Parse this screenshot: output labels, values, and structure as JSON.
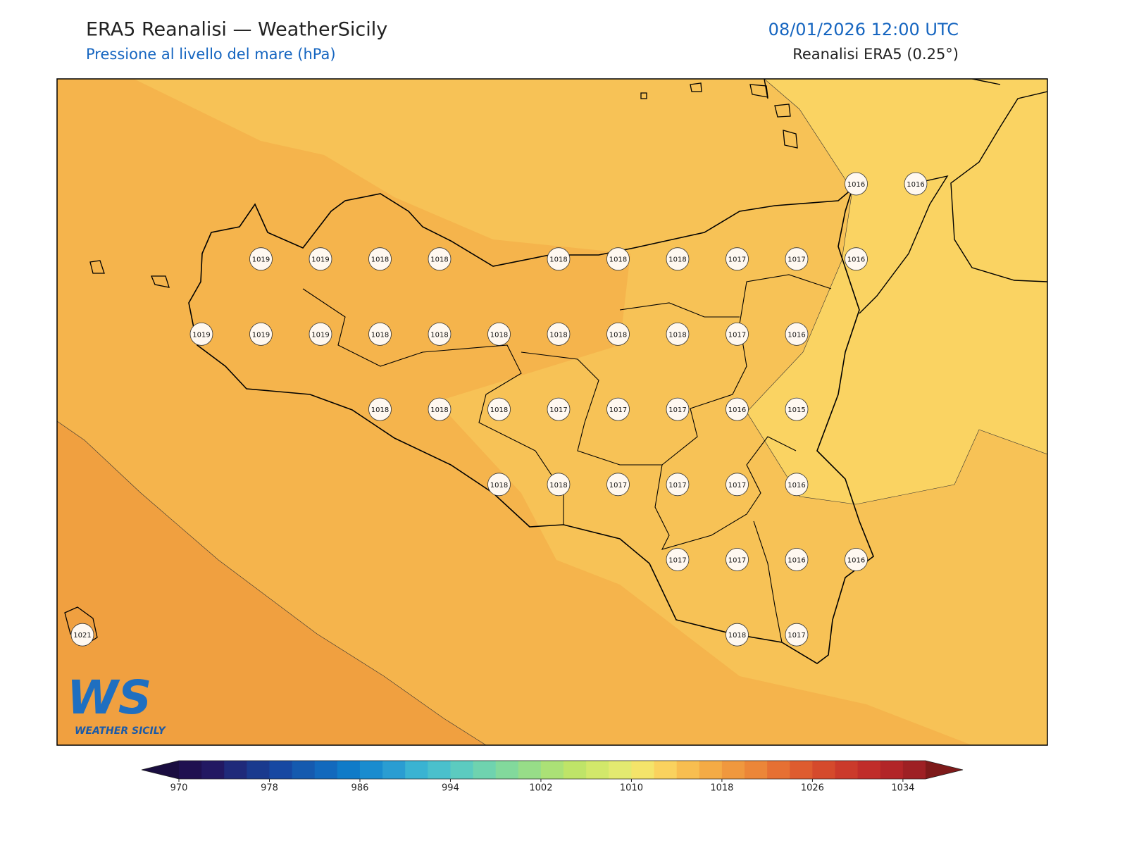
{
  "header": {
    "title": "ERA5 Reanalisi — WeatherSicily",
    "subtitle": "Pressione al livello del mare (hPa)",
    "datetime": "08/01/2026 12:00 UTC",
    "source": "Reanalisi ERA5 (0.25°)"
  },
  "grid": {
    "rows": [
      [
        null,
        null,
        null,
        null,
        null,
        null,
        null,
        null,
        null,
        null,
        null,
        null,
        null,
        1016,
        1016
      ],
      [
        null,
        null,
        null,
        1019,
        1019,
        1018,
        1018,
        null,
        1018,
        1018,
        1018,
        1017,
        1017,
        1016,
        null
      ],
      [
        null,
        null,
        1019,
        1019,
        1019,
        1018,
        1018,
        1018,
        1018,
        1018,
        1018,
        1017,
        1016,
        null,
        null
      ],
      [
        null,
        null,
        null,
        null,
        null,
        1018,
        1018,
        1018,
        1017,
        1017,
        1017,
        1016,
        1015,
        null,
        null
      ],
      [
        null,
        null,
        null,
        null,
        null,
        null,
        null,
        1018,
        1018,
        1017,
        1017,
        1017,
        1016,
        null,
        null
      ],
      [
        null,
        null,
        null,
        null,
        null,
        null,
        null,
        null,
        null,
        null,
        1017,
        1017,
        1016,
        1016,
        null
      ],
      [
        1021,
        null,
        null,
        null,
        null,
        null,
        null,
        null,
        null,
        null,
        null,
        1018,
        1017,
        null,
        null
      ]
    ]
  },
  "colorbar": {
    "clim": [
      970,
      1036
    ],
    "step": 2,
    "ticks": [
      970,
      978,
      986,
      994,
      1002,
      1010,
      1018,
      1026,
      1034
    ],
    "colors": [
      "#1f1050",
      "#221862",
      "#1f2a7a",
      "#1a3a8e",
      "#1748a2",
      "#155aaf",
      "#1269bd",
      "#0f7bc8",
      "#1a8ccf",
      "#2a9dd2",
      "#3ab3d2",
      "#4ac0cc",
      "#5ccbc0",
      "#6fd3af",
      "#82d99c",
      "#97dd88",
      "#abe176",
      "#bfe468",
      "#d2e86a",
      "#e3ea70",
      "#f4e46a",
      "#fad25e",
      "#f8be50",
      "#f4ab45",
      "#f0983e",
      "#ec8638",
      "#e67033",
      "#de5c2f",
      "#d54a2c",
      "#cb3a2b",
      "#c02d2a",
      "#b22528",
      "#9e2024"
    ],
    "extend_low": "#1a0d40",
    "extend_high": "#7e1a1a"
  },
  "logo": {
    "mark": "WS",
    "name": "WEATHER SICILY"
  }
}
